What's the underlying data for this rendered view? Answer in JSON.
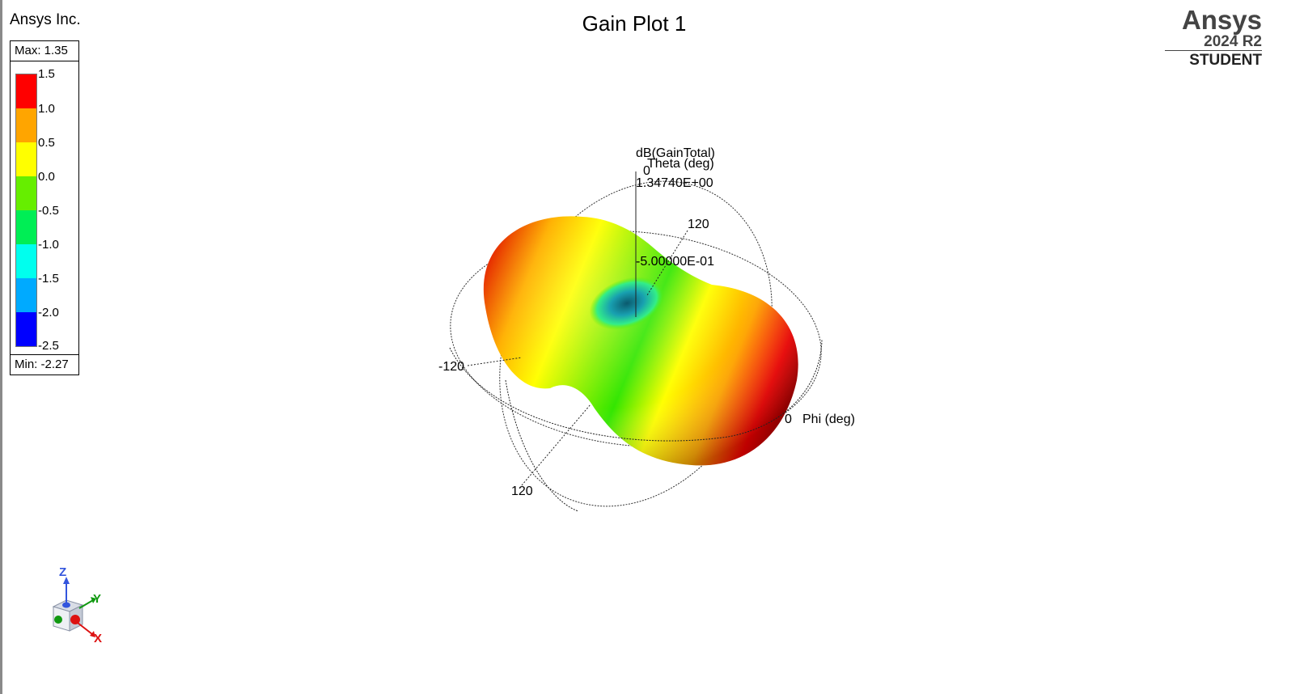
{
  "header": {
    "company": "Ansys Inc.",
    "title": "Gain Plot 1"
  },
  "branding": {
    "name": "Ansys",
    "version": "2024 R2",
    "edition": "STUDENT"
  },
  "legend": {
    "max_label": "Max: 1.35",
    "min_label": "Min: -2.27",
    "ticks": [
      "1.5",
      "1.0",
      "0.5",
      "0.0",
      "-0.5",
      "-1.0",
      "-1.5",
      "-2.0",
      "-2.5"
    ],
    "colors": [
      "#ff0000",
      "#ffa500",
      "#ffff00",
      "#66ee00",
      "#00ee55",
      "#00ffee",
      "#00aaff",
      "#0000ff"
    ]
  },
  "plot": {
    "quantity": "dB(GainTotal)",
    "theta_axis_label": "Theta (deg)",
    "phi_axis_label": "Phi (deg)",
    "theta_zero": "0",
    "max_value_label": "1.34740E+00",
    "mid_value_label": "-5.00000E-01",
    "tick_120_top": "120",
    "tick_minus_120": "-120",
    "tick_120_bottom": "120",
    "phi_zero": "0"
  },
  "triad": {
    "z_label": "Z",
    "y_label": "Y",
    "x_label": "X",
    "z_color": "#3355dd",
    "y_color": "#119911",
    "x_color": "#dd1111"
  }
}
